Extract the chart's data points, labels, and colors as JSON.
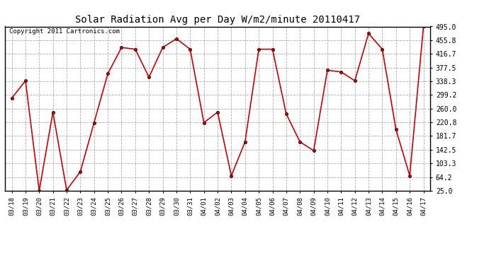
{
  "title": "Solar Radiation Avg per Day W/m2/minute 20110417",
  "copyright": "Copyright 2011 Cartronics.com",
  "labels": [
    "03/18",
    "03/19",
    "03/20",
    "03/21",
    "03/22",
    "03/23",
    "03/24",
    "03/25",
    "03/26",
    "03/27",
    "03/28",
    "03/29",
    "03/30",
    "03/31",
    "04/01",
    "04/02",
    "04/03",
    "04/04",
    "04/05",
    "04/06",
    "04/07",
    "04/08",
    "04/09",
    "04/10",
    "04/11",
    "04/12",
    "04/13",
    "04/14",
    "04/15",
    "04/16",
    "04/17"
  ],
  "values": [
    290,
    340,
    25,
    250,
    27,
    80,
    220,
    360,
    435,
    430,
    350,
    435,
    460,
    430,
    220,
    250,
    68,
    165,
    430,
    430,
    245,
    165,
    140,
    370,
    365,
    340,
    475,
    430,
    200,
    68,
    495
  ],
  "line_color": "#cc0000",
  "marker": "o",
  "marker_size": 3,
  "bg_color": "#ffffff",
  "grid_color": "#aaaaaa",
  "ylim": [
    25.0,
    495.0
  ],
  "yticks": [
    25.0,
    64.2,
    103.3,
    142.5,
    181.7,
    220.8,
    260.0,
    299.2,
    338.3,
    377.5,
    416.7,
    455.8,
    495.0
  ],
  "title_fontsize": 10,
  "copyright_fontsize": 6.5,
  "tick_fontsize": 6.5,
  "ytick_fontsize": 7
}
